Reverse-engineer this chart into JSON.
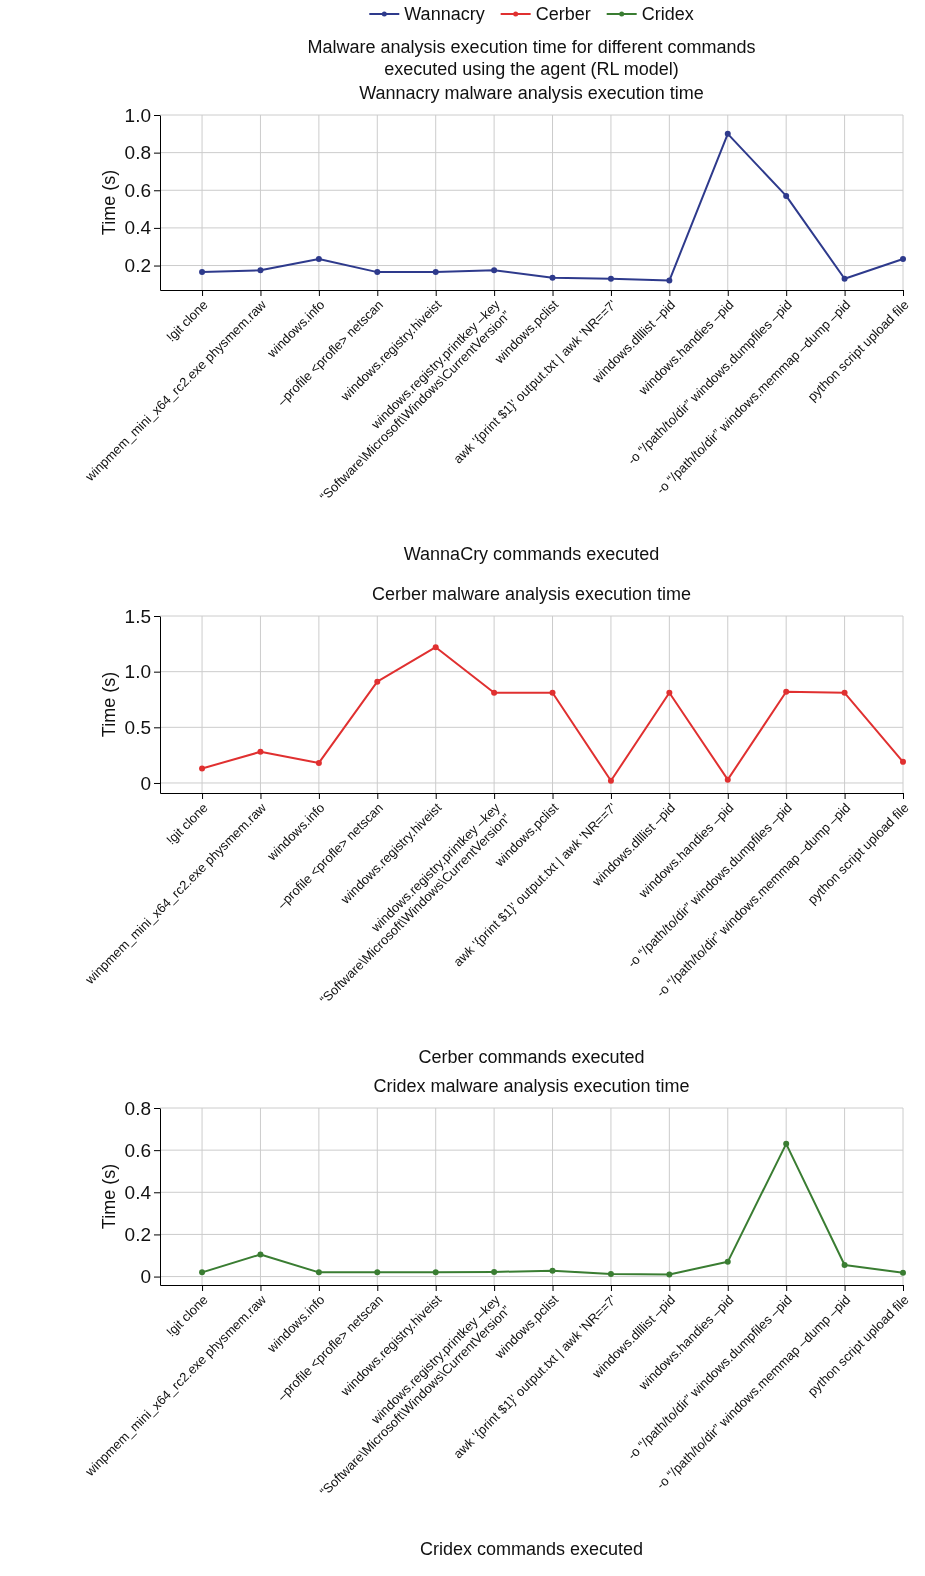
{
  "chart_data": [
    {
      "type": "line",
      "title": "Malware analysis execution time for different commands\nexecuted using the agent (RL model)",
      "subtitle": "Wannacry malware analysis execution time",
      "xlabel": "WannaCry commands executed",
      "ylabel": "Time (s)",
      "categories": [
        "!git clone",
        "winpmem_mini_x64_rc2.exe physmem.raw",
        "windows.info",
        "–profile <profle> netscan",
        "windows.registry.hiveist",
        "windows.registry.printkey –key\n“Software\\Microsoft\\Windows\\CurrentVersion”",
        "windows.pclist",
        "awk '{print $1}' output.txt | awk 'NR==7'",
        "windows.dlllist –pid",
        "windows.handies –pid",
        "-o “/path/to/dir” windows.dumpfiles –pid",
        "-o “/path/to/dir” windows.memmap –dump –pid",
        "python script upload file"
      ],
      "series": [
        {
          "name": "Wannacry",
          "color": "#2e3a8c",
          "values": [
            0.165,
            0.175,
            0.235,
            0.165,
            0.165,
            0.175,
            0.135,
            0.13,
            0.12,
            0.9,
            0.57,
            0.13,
            0.235
          ]
        }
      ],
      "ylim": [
        0.07,
        1.0
      ],
      "yticks": [
        0.2,
        0.4,
        0.6,
        0.8,
        {
          "value": 1,
          "label": "1.0"
        }
      ],
      "grid": true,
      "legend": "top",
      "marker": "circle"
    },
    {
      "type": "line",
      "title": "Cerber malware analysis execution time",
      "xlabel": "Cerber commands executed",
      "ylabel": "Time (s)",
      "categories": [
        "!git clone",
        "winpmem_mini_x64_rc2.exe physmem.raw",
        "windows.info",
        "–profile <profle> netscan",
        "windows.registry.hiveist",
        "windows.registry.printkey –key\n“Software\\Microsoft\\Windows\\CurrentVersion”",
        "windows.pclist",
        "awk '{print $1}' output.txt | awk 'NR==7'",
        "windows.dlllist –pid",
        "windows.handies –pid",
        "-o “/path/to/dir” windows.dumpfiles –pid",
        "-o “/path/to/dir” windows.memmap –dump –pid",
        "python script upload file"
      ],
      "series": [
        {
          "name": "Cerber",
          "color": "#e03030",
          "values": [
            0.13,
            0.28,
            0.18,
            0.91,
            1.22,
            0.81,
            0.81,
            0.02,
            0.81,
            0.03,
            0.82,
            0.81,
            0.19
          ]
        }
      ],
      "ylim": [
        -0.09,
        1.5
      ],
      "yticks": [
        0,
        0.5,
        {
          "value": 1,
          "label": "1.0"
        },
        1.5
      ],
      "grid": true,
      "legend": "top",
      "marker": "circle"
    },
    {
      "type": "line",
      "title": "Cridex malware analysis execution time",
      "xlabel": "Cridex commands executed",
      "ylabel": "Time (s)",
      "categories": [
        "!git clone",
        "winpmem_mini_x64_rc2.exe physmem.raw",
        "windows.info",
        "–profile <profle> netscan",
        "windows.registry.hiveist",
        "windows.registry.printkey –key\n“Software\\Microsoft\\Windows\\CurrentVersion”",
        "windows.pclist",
        "awk '{print $1}' output.txt | awk 'NR==7'",
        "windows.dlllist –pid",
        "windows.handies –pid",
        "-o “/path/to/dir” windows.dumpfiles –pid",
        "-o “/path/to/dir” windows.memmap –dump –pid",
        "python script upload file"
      ],
      "series": [
        {
          "name": "Cridex",
          "color": "#3a7d32",
          "values": [
            0.02,
            0.105,
            0.02,
            0.02,
            0.02,
            0.022,
            0.028,
            0.012,
            0.01,
            0.07,
            0.63,
            0.055,
            0.018
          ]
        }
      ],
      "ylim": [
        -0.04,
        0.8
      ],
      "yticks": [
        0,
        0.2,
        0.4,
        0.6,
        0.8
      ],
      "grid": true,
      "legend": "top",
      "marker": "circle"
    }
  ]
}
